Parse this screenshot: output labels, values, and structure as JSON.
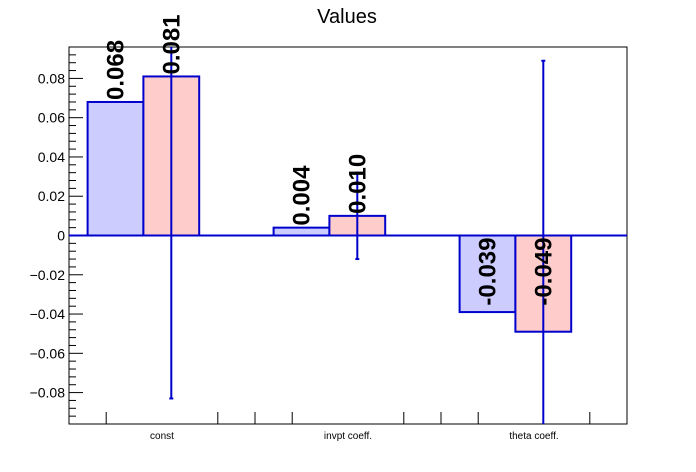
{
  "chart_data": {
    "type": "bar",
    "title": "Values",
    "xlabel": "",
    "ylabel": "",
    "categories": [
      "const",
      "invpt coeff.",
      "theta coeff."
    ],
    "ylim": [
      -0.096,
      0.096
    ],
    "yticks": [
      0.08,
      0.06,
      0.04,
      0.02,
      0,
      -0.02,
      -0.04,
      -0.06,
      -0.08
    ],
    "ytick_labels": [
      "0.08",
      "0.06",
      "0.04",
      "0.02",
      "0",
      "−0.02",
      "−0.04",
      "−0.06",
      "−0.08"
    ],
    "grid": false,
    "series": [
      {
        "values": [
          0.068,
          0.004,
          -0.039
        ],
        "labels": [
          "0.068",
          "0.004",
          "-0.039"
        ],
        "fill": "#ccccff",
        "stroke": "#0000cc"
      },
      {
        "values": [
          0.081,
          0.01,
          -0.049
        ],
        "labels": [
          "0.081",
          "0.010",
          "-0.049"
        ],
        "fill": "#ffcccc",
        "stroke": "#0000cc",
        "errors": [
          0.164,
          0.022,
          0.138
        ]
      }
    ]
  }
}
